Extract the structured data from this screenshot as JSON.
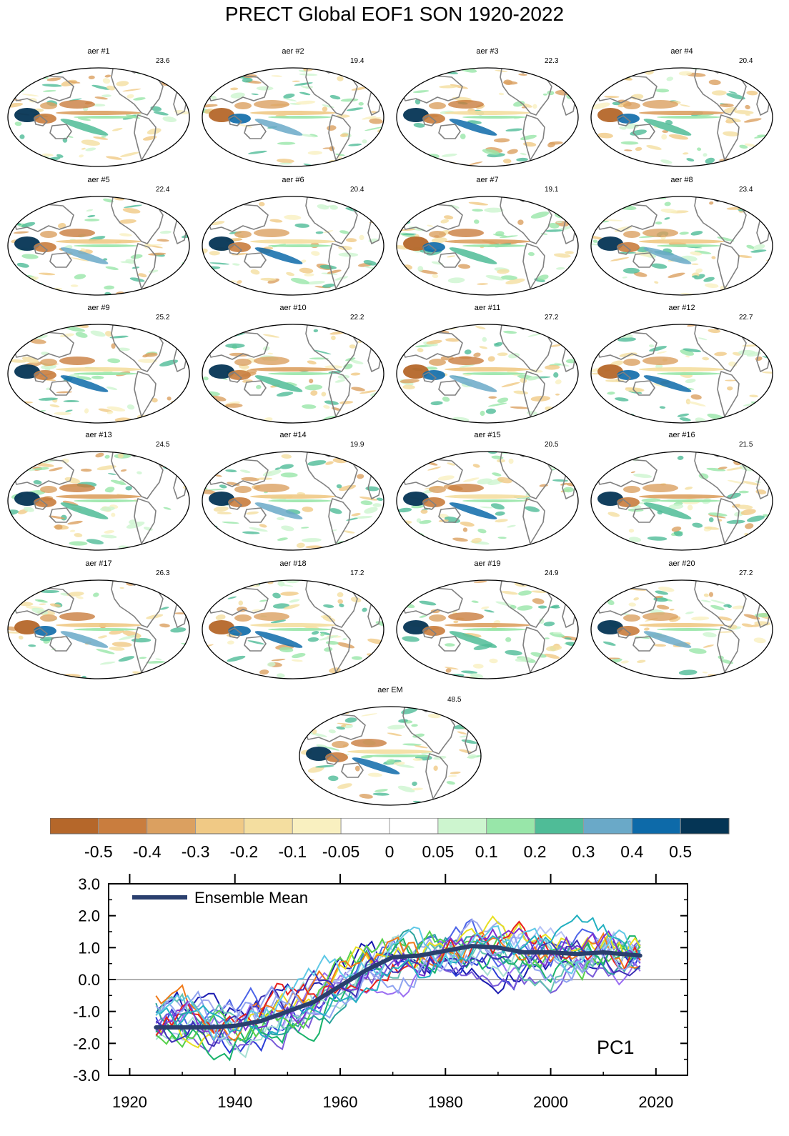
{
  "title": "PRECT Global EOF1 SON 1920-2022",
  "panels": [
    {
      "name": "aer #1",
      "variance": "23.6"
    },
    {
      "name": "aer #2",
      "variance": "19.4"
    },
    {
      "name": "aer #3",
      "variance": "22.3"
    },
    {
      "name": "aer #4",
      "variance": "20.4"
    },
    {
      "name": "aer #5",
      "variance": "22.4"
    },
    {
      "name": "aer #6",
      "variance": "20.4"
    },
    {
      "name": "aer #7",
      "variance": "19.1"
    },
    {
      "name": "aer #8",
      "variance": "23.4"
    },
    {
      "name": "aer #9",
      "variance": "25.2"
    },
    {
      "name": "aer #10",
      "variance": "22.2"
    },
    {
      "name": "aer #11",
      "variance": "27.2"
    },
    {
      "name": "aer #12",
      "variance": "22.7"
    },
    {
      "name": "aer #13",
      "variance": "24.5"
    },
    {
      "name": "aer #14",
      "variance": "19.9"
    },
    {
      "name": "aer #15",
      "variance": "20.5"
    },
    {
      "name": "aer #16",
      "variance": "21.5"
    },
    {
      "name": "aer #17",
      "variance": "26.3"
    },
    {
      "name": "aer #18",
      "variance": "17.2"
    },
    {
      "name": "aer #19",
      "variance": "24.9"
    },
    {
      "name": "aer #20",
      "variance": "27.2"
    },
    {
      "name": "aer EM",
      "variance": "48.5"
    }
  ],
  "colorbar": {
    "colors": [
      "#b5672a",
      "#c97d3e",
      "#dba060",
      "#f0c985",
      "#f4dea0",
      "#f9f0c0",
      "#ffffff",
      "#ffffff",
      "#cdf5cf",
      "#98e6a9",
      "#4fbc97",
      "#6aa9c8",
      "#0d6aa9",
      "#053555"
    ],
    "labels": [
      "-0.5",
      "-0.4",
      "-0.3",
      "-0.2",
      "-0.1",
      "-0.05",
      "0",
      "0.05",
      "0.1",
      "0.2",
      "0.3",
      "0.4",
      "0.5"
    ]
  },
  "chart_data": {
    "type": "line",
    "title": "PC1",
    "legend": "Ensemble Mean",
    "xlabel": "",
    "ylabel": "",
    "xlim": [
      1916,
      2026
    ],
    "ylim": [
      -3.0,
      3.0
    ],
    "xticks": [
      "1920",
      "1940",
      "1960",
      "1980",
      "2000",
      "2020"
    ],
    "yticks": [
      "-3.0",
      "-2.0",
      "-1.0",
      "0.0",
      "1.0",
      "2.0",
      "3.0"
    ],
    "ensemble_mean": {
      "years": [
        1925,
        1930,
        1935,
        1940,
        1945,
        1950,
        1955,
        1960,
        1965,
        1970,
        1975,
        1980,
        1985,
        1990,
        1995,
        2000,
        2005,
        2010,
        2017
      ],
      "values": [
        -1.5,
        -1.5,
        -1.5,
        -1.45,
        -1.3,
        -1.0,
        -0.7,
        -0.2,
        0.3,
        0.7,
        0.75,
        0.9,
        1.05,
        1.0,
        0.85,
        0.85,
        0.8,
        0.85,
        0.75
      ]
    },
    "member_colors": [
      "#1a1ab0",
      "#2b3cd6",
      "#4b63e8",
      "#7a5bd9",
      "#9b6ef2",
      "#a0a8ec",
      "#b5c2f5",
      "#2aa39b",
      "#63c2b0",
      "#a7e0d3",
      "#19b36b",
      "#56d14a",
      "#e8e020",
      "#f07b1a",
      "#e8231e",
      "#7d2fd0",
      "#3d2fb5",
      "#8fa3f0",
      "#22b0c0",
      "#5ec8e6"
    ]
  }
}
